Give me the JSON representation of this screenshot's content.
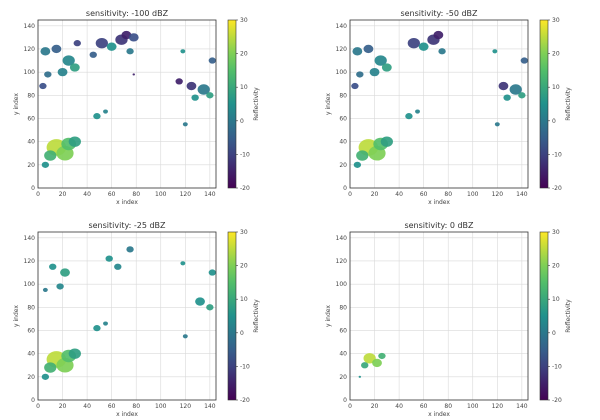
{
  "chart_data": [
    {
      "type": "heatmap",
      "title": "sensitivity: -100 dBZ",
      "xlabel": "x index",
      "ylabel": "y index",
      "xlim": [
        0,
        145
      ],
      "ylim": [
        0,
        145
      ],
      "xticks": [
        0,
        20,
        40,
        60,
        80,
        100,
        120,
        140
      ],
      "yticks": [
        0,
        20,
        40,
        60,
        80,
        100,
        120,
        140
      ],
      "grid": true,
      "colorbar": {
        "label": "Reflectivity",
        "min": -20,
        "max": 30,
        "ticks": [
          30,
          20,
          10,
          0,
          -10,
          -20
        ],
        "colormap": "viridis"
      },
      "cells": [
        {
          "x": 15,
          "y": 35,
          "r": 8,
          "value": 25
        },
        {
          "x": 22,
          "y": 30,
          "r": 7,
          "value": 20
        },
        {
          "x": 25,
          "y": 38,
          "r": 6,
          "value": 15
        },
        {
          "x": 30,
          "y": 40,
          "r": 5,
          "value": 8
        },
        {
          "x": 10,
          "y": 28,
          "r": 5,
          "value": 12
        },
        {
          "x": 6,
          "y": 20,
          "r": 3,
          "value": 5
        },
        {
          "x": 48,
          "y": 62,
          "r": 3,
          "value": 5
        },
        {
          "x": 55,
          "y": 66,
          "r": 2,
          "value": 2
        },
        {
          "x": 6,
          "y": 118,
          "r": 4,
          "value": 0
        },
        {
          "x": 15,
          "y": 120,
          "r": 4,
          "value": -5
        },
        {
          "x": 25,
          "y": 110,
          "r": 5,
          "value": 3
        },
        {
          "x": 30,
          "y": 104,
          "r": 4,
          "value": 8
        },
        {
          "x": 20,
          "y": 100,
          "r": 4,
          "value": 2
        },
        {
          "x": 8,
          "y": 98,
          "r": 3,
          "value": -2
        },
        {
          "x": 4,
          "y": 88,
          "r": 3,
          "value": -8
        },
        {
          "x": 32,
          "y": 125,
          "r": 3,
          "value": -10
        },
        {
          "x": 52,
          "y": 125,
          "r": 5,
          "value": -10
        },
        {
          "x": 60,
          "y": 122,
          "r": 4,
          "value": 5
        },
        {
          "x": 68,
          "y": 128,
          "r": 5,
          "value": -12
        },
        {
          "x": 72,
          "y": 132,
          "r": 4,
          "value": -15
        },
        {
          "x": 78,
          "y": 130,
          "r": 4,
          "value": -8
        },
        {
          "x": 75,
          "y": 118,
          "r": 3,
          "value": 0
        },
        {
          "x": 45,
          "y": 115,
          "r": 3,
          "value": -5
        },
        {
          "x": 115,
          "y": 92,
          "r": 3,
          "value": -15
        },
        {
          "x": 125,
          "y": 88,
          "r": 4,
          "value": -12
        },
        {
          "x": 135,
          "y": 85,
          "r": 5,
          "value": 0
        },
        {
          "x": 128,
          "y": 78,
          "r": 3,
          "value": 5
        },
        {
          "x": 140,
          "y": 80,
          "r": 3,
          "value": 8
        },
        {
          "x": 142,
          "y": 110,
          "r": 3,
          "value": -5
        },
        {
          "x": 118,
          "y": 118,
          "r": 2,
          "value": 5
        },
        {
          "x": 120,
          "y": 55,
          "r": 2,
          "value": 0
        },
        {
          "x": 78,
          "y": 98,
          "r": 1,
          "value": -15
        }
      ]
    },
    {
      "type": "heatmap",
      "title": "sensitivity: -50 dBZ",
      "xlabel": "x index",
      "ylabel": "y index",
      "xlim": [
        0,
        145
      ],
      "ylim": [
        0,
        145
      ],
      "xticks": [
        0,
        20,
        40,
        60,
        80,
        100,
        120,
        140
      ],
      "yticks": [
        0,
        20,
        40,
        60,
        80,
        100,
        120,
        140
      ],
      "grid": true,
      "colorbar": {
        "label": "Reflectivity",
        "min": -20,
        "max": 30,
        "ticks": [
          30,
          20,
          10,
          0,
          -10,
          -20
        ],
        "colormap": "viridis"
      },
      "cells": [
        {
          "x": 15,
          "y": 35,
          "r": 8,
          "value": 25
        },
        {
          "x": 22,
          "y": 30,
          "r": 7,
          "value": 20
        },
        {
          "x": 25,
          "y": 38,
          "r": 6,
          "value": 15
        },
        {
          "x": 30,
          "y": 40,
          "r": 5,
          "value": 8
        },
        {
          "x": 10,
          "y": 28,
          "r": 5,
          "value": 12
        },
        {
          "x": 6,
          "y": 20,
          "r": 3,
          "value": 5
        },
        {
          "x": 48,
          "y": 62,
          "r": 3,
          "value": 5
        },
        {
          "x": 55,
          "y": 66,
          "r": 2,
          "value": 2
        },
        {
          "x": 6,
          "y": 118,
          "r": 4,
          "value": 0
        },
        {
          "x": 15,
          "y": 120,
          "r": 4,
          "value": -5
        },
        {
          "x": 25,
          "y": 110,
          "r": 5,
          "value": 3
        },
        {
          "x": 30,
          "y": 104,
          "r": 4,
          "value": 8
        },
        {
          "x": 20,
          "y": 100,
          "r": 4,
          "value": 2
        },
        {
          "x": 8,
          "y": 98,
          "r": 3,
          "value": -2
        },
        {
          "x": 4,
          "y": 88,
          "r": 3,
          "value": -8
        },
        {
          "x": 52,
          "y": 125,
          "r": 5,
          "value": -10
        },
        {
          "x": 60,
          "y": 122,
          "r": 4,
          "value": 5
        },
        {
          "x": 68,
          "y": 128,
          "r": 5,
          "value": -12
        },
        {
          "x": 72,
          "y": 132,
          "r": 4,
          "value": -15
        },
        {
          "x": 75,
          "y": 118,
          "r": 3,
          "value": 0
        },
        {
          "x": 125,
          "y": 88,
          "r": 4,
          "value": -12
        },
        {
          "x": 135,
          "y": 85,
          "r": 5,
          "value": 0
        },
        {
          "x": 128,
          "y": 78,
          "r": 3,
          "value": 5
        },
        {
          "x": 140,
          "y": 80,
          "r": 3,
          "value": 8
        },
        {
          "x": 142,
          "y": 110,
          "r": 3,
          "value": -5
        },
        {
          "x": 118,
          "y": 118,
          "r": 2,
          "value": 5
        },
        {
          "x": 120,
          "y": 55,
          "r": 2,
          "value": 0
        }
      ]
    },
    {
      "type": "heatmap",
      "title": "sensitivity: -25 dBZ",
      "xlabel": "x index",
      "ylabel": "y index",
      "xlim": [
        0,
        145
      ],
      "ylim": [
        0,
        145
      ],
      "xticks": [
        0,
        20,
        40,
        60,
        80,
        100,
        120,
        140
      ],
      "yticks": [
        0,
        20,
        40,
        60,
        80,
        100,
        120,
        140
      ],
      "grid": true,
      "colorbar": {
        "label": "Reflectivity",
        "min": -20,
        "max": 30,
        "ticks": [
          30,
          20,
          10,
          0,
          -10,
          -20
        ],
        "colormap": "viridis"
      },
      "cells": [
        {
          "x": 15,
          "y": 35,
          "r": 8,
          "value": 25
        },
        {
          "x": 22,
          "y": 30,
          "r": 7,
          "value": 20
        },
        {
          "x": 25,
          "y": 38,
          "r": 6,
          "value": 15
        },
        {
          "x": 30,
          "y": 40,
          "r": 5,
          "value": 8
        },
        {
          "x": 10,
          "y": 28,
          "r": 5,
          "value": 12
        },
        {
          "x": 6,
          "y": 20,
          "r": 3,
          "value": 5
        },
        {
          "x": 48,
          "y": 62,
          "r": 3,
          "value": 5
        },
        {
          "x": 55,
          "y": 66,
          "r": 2,
          "value": 2
        },
        {
          "x": 12,
          "y": 115,
          "r": 3,
          "value": 5
        },
        {
          "x": 22,
          "y": 110,
          "r": 4,
          "value": 8
        },
        {
          "x": 18,
          "y": 98,
          "r": 3,
          "value": 3
        },
        {
          "x": 6,
          "y": 95,
          "r": 2,
          "value": 0
        },
        {
          "x": 58,
          "y": 122,
          "r": 3,
          "value": 5
        },
        {
          "x": 65,
          "y": 115,
          "r": 3,
          "value": 3
        },
        {
          "x": 75,
          "y": 130,
          "r": 3,
          "value": 0
        },
        {
          "x": 132,
          "y": 85,
          "r": 4,
          "value": 5
        },
        {
          "x": 140,
          "y": 80,
          "r": 3,
          "value": 8
        },
        {
          "x": 142,
          "y": 110,
          "r": 3,
          "value": 5
        },
        {
          "x": 118,
          "y": 118,
          "r": 2,
          "value": 5
        },
        {
          "x": 120,
          "y": 55,
          "r": 2,
          "value": 0
        }
      ]
    },
    {
      "type": "heatmap",
      "title": "sensitivity: 0 dBZ",
      "xlabel": "x index",
      "ylabel": "y index",
      "xlim": [
        0,
        145
      ],
      "ylim": [
        0,
        145
      ],
      "xticks": [
        0,
        20,
        40,
        60,
        80,
        100,
        120,
        140
      ],
      "yticks": [
        0,
        20,
        40,
        60,
        80,
        100,
        120,
        140
      ],
      "grid": true,
      "colorbar": {
        "label": "Reflectivity",
        "min": -20,
        "max": 30,
        "ticks": [
          30,
          20,
          10,
          0,
          -10,
          -20
        ],
        "colormap": "viridis"
      },
      "cells": [
        {
          "x": 16,
          "y": 36,
          "r": 5,
          "value": 25
        },
        {
          "x": 22,
          "y": 32,
          "r": 4,
          "value": 20
        },
        {
          "x": 26,
          "y": 38,
          "r": 3,
          "value": 12
        },
        {
          "x": 12,
          "y": 30,
          "r": 3,
          "value": 10
        },
        {
          "x": 8,
          "y": 20,
          "r": 1,
          "value": 5
        }
      ]
    }
  ]
}
